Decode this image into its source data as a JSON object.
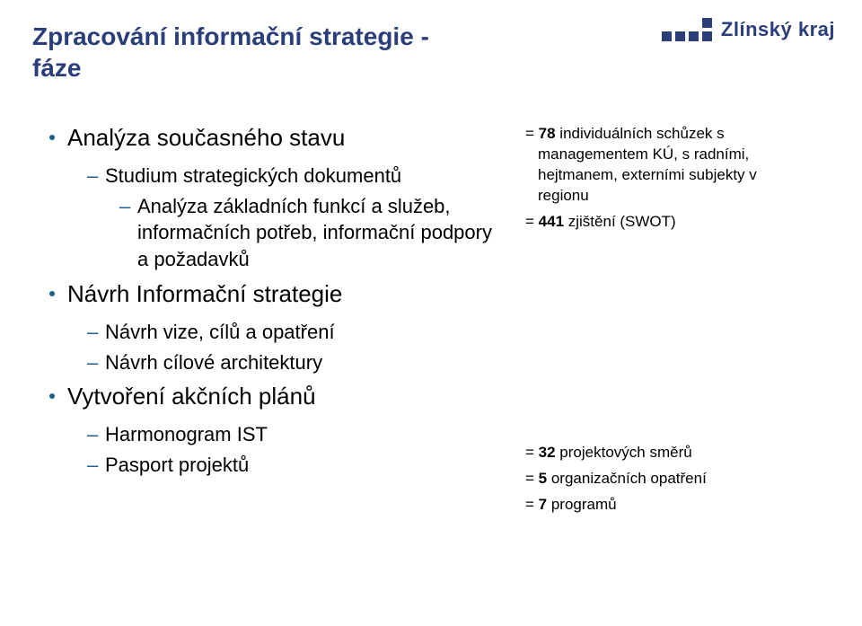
{
  "colors": {
    "brand": "#2a3e7a",
    "bullet": "#1f5f8b",
    "background": "#ffffff",
    "text": "#000000"
  },
  "typography": {
    "title_fontsize": 28,
    "lvl1_fontsize": 26,
    "lvl2_fontsize": 22,
    "lvl3_fontsize": 22,
    "right_fontsize": 17,
    "logo_fontsize": 22,
    "font_family": "Arial"
  },
  "logo": {
    "text": "Zlínský kraj"
  },
  "title": "Zpracování informační strategie - fáze",
  "left": {
    "s1": {
      "heading": "Analýza současného stavu",
      "i1": "Studium strategických dokumentů",
      "i2": "Analýza základních funkcí a služeb, informačních potřeb, informační podpory a požadavků"
    },
    "s2": {
      "heading": "Návrh Informační strategie",
      "i1": "Návrh vize, cílů a opatření",
      "i2": "Návrh cílové architektury"
    },
    "s3": {
      "heading": "Vytvoření akčních plánů",
      "i1": "Harmonogram IST",
      "i2": "Pasport projektů"
    }
  },
  "right": {
    "r1": {
      "prefix": "= ",
      "bold": "78",
      "rest": " individuálních schůzek s managementem KÚ, s radními, hejtmanem, externími subjekty v regionu"
    },
    "r2": {
      "prefix": "= ",
      "bold": "441",
      "rest": " zjištění (SWOT)"
    },
    "r3": {
      "prefix": "= ",
      "bold": "32",
      "rest": " projektových směrů"
    },
    "r4": {
      "prefix": "= ",
      "bold": "5",
      "rest": " organizačních opatření"
    },
    "r5": {
      "prefix": "= ",
      "bold": "7",
      "rest": " programů"
    }
  }
}
